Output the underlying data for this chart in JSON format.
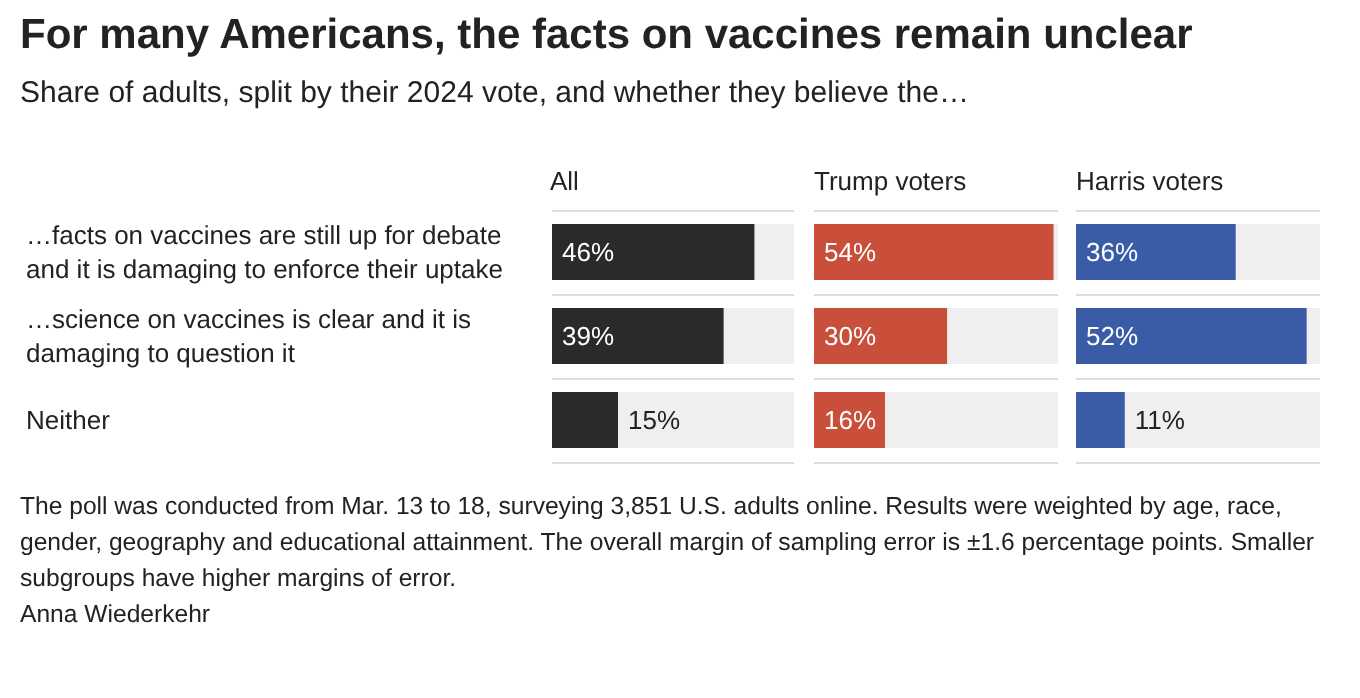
{
  "chart_data": [
    {
      "type": "bar",
      "orientation": "horizontal",
      "title": "For many Americans, the facts on vaccines remain unclear",
      "subtitle": "Share of adults, split by their 2024 vote, and whether they believe the…",
      "categories": [
        "…facts on vaccines are still up for debate and it is damaging to enforce their uptake",
        "…science on vaccines is clear and it is damaging to question it",
        "Neither"
      ],
      "series": [
        {
          "name": "All",
          "color": "#2a2a2a",
          "values": [
            46,
            39,
            15
          ],
          "value_labels": [
            "46%",
            "39%",
            "15%"
          ]
        }
      ],
      "xlim": [
        0,
        55
      ],
      "tick_labels": "y",
      "grid": "y",
      "annotations": [
        "The poll was conducted from Mar. 13 to 18, surveying 3,851 U.S. adults online. Results were weighted by age, race, gender, geography and educational attainment. The overall margin of sampling error is ±1.6 percentage points. Smaller subgroups have higher margins of error.",
        "Anna Wiederkehr"
      ]
    },
    {
      "type": "bar",
      "orientation": "horizontal",
      "series": [
        {
          "name": "Trump voters",
          "color": "#c94f3a",
          "values": [
            54,
            30,
            16
          ],
          "value_labels": [
            "54%",
            "30%",
            "16%"
          ]
        }
      ],
      "xlim": [
        0,
        55
      ],
      "tick_labels": false,
      "grid": "y"
    },
    {
      "type": "bar",
      "orientation": "horizontal",
      "series": [
        {
          "name": "Harris voters",
          "color": "#3a5ca6",
          "values": [
            36,
            52,
            11
          ],
          "value_labels": [
            "36%",
            "52%",
            "11%"
          ]
        }
      ],
      "xlim": [
        0,
        55
      ],
      "tick_labels": false,
      "grid": "y"
    }
  ]
}
